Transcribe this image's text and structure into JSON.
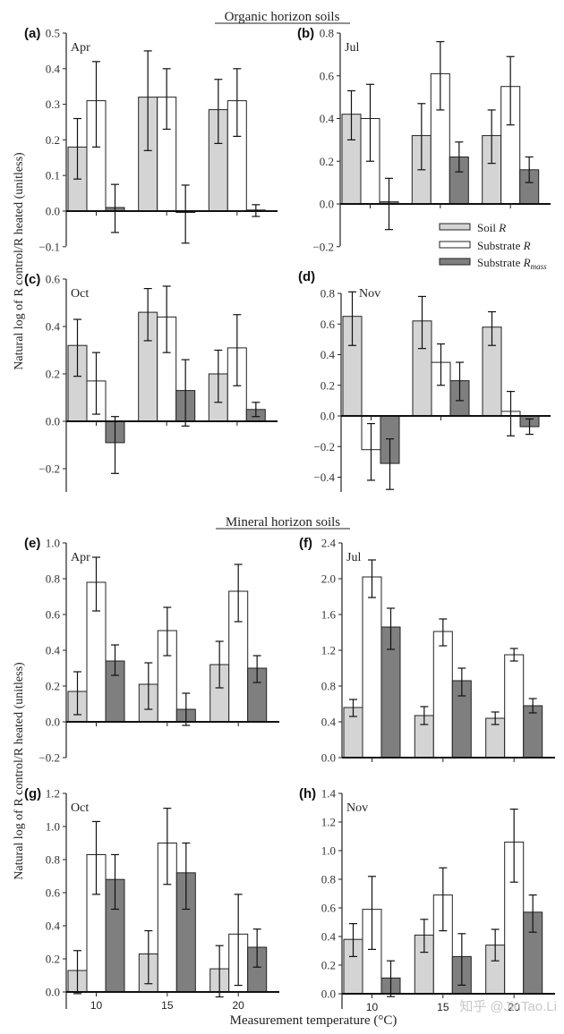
{
  "chart_data": {
    "type": "bar",
    "figure_ylabel": "Natural log of R control/R heated (unitless)",
    "figure_xlabel": "Measurement temperature (°C)",
    "categories": [
      "10",
      "15",
      "20"
    ],
    "legend": {
      "placement": "right, between panels (b) and (d)",
      "entries": [
        {
          "label": "Soil R",
          "color": "#d4d4d4"
        },
        {
          "label": "Substrate R",
          "color": "#ffffff"
        },
        {
          "label": "Substrate R_mass",
          "color": "#7f7f7f"
        }
      ]
    },
    "sections": [
      {
        "title": "Organic horizon soils",
        "panels": [
          {
            "id": "(a)",
            "month": "Apr",
            "ylim": [
              -0.1,
              0.5
            ],
            "yticks": [
              "−0.1",
              "0.0",
              "0.1",
              "0.2",
              "0.3",
              "0.4",
              "0.5"
            ],
            "ytick_values": [
              -0.1,
              0,
              0.1,
              0.2,
              0.3,
              0.4,
              0.5
            ],
            "series": [
              {
                "name": "Soil R",
                "values": [
                  0.18,
                  0.32,
                  0.285
                ],
                "err_low": [
                  0.09,
                  0.17,
                  0.19
                ],
                "err_high": [
                  0.26,
                  0.45,
                  0.37
                ]
              },
              {
                "name": "Substrate R",
                "values": [
                  0.31,
                  0.32,
                  0.31
                ],
                "err_low": [
                  0.18,
                  0.23,
                  0.21
                ],
                "err_high": [
                  0.42,
                  0.4,
                  0.4
                ]
              },
              {
                "name": "Substrate R_mass",
                "values": [
                  0.01,
                  -0.003,
                  0.003
                ],
                "err_low": [
                  -0.06,
                  -0.09,
                  -0.015
                ],
                "err_high": [
                  0.075,
                  0.073,
                  0.018
                ]
              }
            ]
          },
          {
            "id": "(b)",
            "month": "Jul",
            "ylim": [
              -0.2,
              0.8
            ],
            "yticks": [
              "−0.2",
              "0.0",
              "0.2",
              "0.4",
              "0.6",
              "0.8"
            ],
            "ytick_values": [
              -0.2,
              0,
              0.2,
              0.4,
              0.6,
              0.8
            ],
            "series": [
              {
                "name": "Soil R",
                "values": [
                  0.42,
                  0.32,
                  0.32
                ],
                "err_low": [
                  0.3,
                  0.16,
                  0.19
                ],
                "err_high": [
                  0.53,
                  0.47,
                  0.44
                ]
              },
              {
                "name": "Substrate R",
                "values": [
                  0.4,
                  0.61,
                  0.55
                ],
                "err_low": [
                  0.2,
                  0.44,
                  0.37
                ],
                "err_high": [
                  0.56,
                  0.76,
                  0.69
                ]
              },
              {
                "name": "Substrate R_mass",
                "values": [
                  0.01,
                  0.22,
                  0.16
                ],
                "err_low": [
                  -0.12,
                  0.15,
                  0.1
                ],
                "err_high": [
                  0.12,
                  0.29,
                  0.22
                ]
              }
            ]
          },
          {
            "id": "(c)",
            "month": "Oct",
            "ylim": [
              -0.3,
              0.6
            ],
            "yticks": [
              "−0.2",
              "0.0",
              "0.2",
              "0.4",
              "0.6"
            ],
            "ytick_values": [
              -0.2,
              0,
              0.2,
              0.4,
              0.6
            ],
            "series": [
              {
                "name": "Soil R",
                "values": [
                  0.32,
                  0.46,
                  0.2
                ],
                "err_low": [
                  0.19,
                  0.34,
                  0.08
                ],
                "err_high": [
                  0.43,
                  0.56,
                  0.3
                ]
              },
              {
                "name": "Substrate R",
                "values": [
                  0.17,
                  0.44,
                  0.31
                ],
                "err_low": [
                  0.03,
                  0.29,
                  0.15
                ],
                "err_high": [
                  0.29,
                  0.57,
                  0.45
                ]
              },
              {
                "name": "Substrate R_mass",
                "values": [
                  -0.09,
                  0.13,
                  0.05
                ],
                "err_low": [
                  -0.22,
                  -0.02,
                  0.02
                ],
                "err_high": [
                  0.02,
                  0.26,
                  0.08
                ]
              }
            ]
          },
          {
            "id": "(d)",
            "month": "Nov",
            "ylim": [
              -0.5,
              0.9
            ],
            "yticks": [
              "−0.4",
              "−0.2",
              "0.0",
              "0.2",
              "0.4",
              "0.6",
              "0.8"
            ],
            "ytick_values": [
              -0.4,
              -0.2,
              0,
              0.2,
              0.4,
              0.6,
              0.8
            ],
            "series": [
              {
                "name": "Soil R",
                "values": [
                  0.65,
                  0.62,
                  0.58
                ],
                "err_low": [
                  0.46,
                  0.44,
                  0.46
                ],
                "err_high": [
                  0.81,
                  0.78,
                  0.68
                ]
              },
              {
                "name": "Substrate R",
                "values": [
                  -0.22,
                  0.35,
                  0.03
                ],
                "err_low": [
                  -0.42,
                  0.2,
                  -0.13
                ],
                "err_high": [
                  -0.05,
                  0.47,
                  0.16
                ]
              },
              {
                "name": "Substrate R_mass",
                "values": [
                  -0.31,
                  0.23,
                  -0.07
                ],
                "err_low": [
                  -0.48,
                  0.1,
                  -0.12
                ],
                "err_high": [
                  -0.15,
                  0.35,
                  -0.02
                ]
              }
            ]
          }
        ]
      },
      {
        "title": "Mineral horizon soils",
        "panels": [
          {
            "id": "(e)",
            "month": "Apr",
            "ylim": [
              -0.2,
              1.0
            ],
            "yticks": [
              "−0.2",
              "0.0",
              "0.2",
              "0.4",
              "0.6",
              "0.8",
              "1.0"
            ],
            "ytick_values": [
              -0.2,
              0,
              0.2,
              0.4,
              0.6,
              0.8,
              1.0
            ],
            "series": [
              {
                "name": "Soil R",
                "values": [
                  0.17,
                  0.21,
                  0.32
                ],
                "err_low": [
                  0.04,
                  0.07,
                  0.19
                ],
                "err_high": [
                  0.28,
                  0.33,
                  0.45
                ]
              },
              {
                "name": "Substrate R",
                "values": [
                  0.78,
                  0.51,
                  0.73
                ],
                "err_low": [
                  0.62,
                  0.37,
                  0.56
                ],
                "err_high": [
                  0.92,
                  0.64,
                  0.88
                ]
              },
              {
                "name": "Substrate R_mass",
                "values": [
                  0.34,
                  0.07,
                  0.3
                ],
                "err_low": [
                  0.26,
                  -0.02,
                  0.22
                ],
                "err_high": [
                  0.43,
                  0.16,
                  0.37
                ]
              }
            ]
          },
          {
            "id": "(f)",
            "month": "Jul",
            "ylim": [
              0.0,
              2.4
            ],
            "yticks": [
              "0.0",
              "0.4",
              "0.8",
              "1.2",
              "1.6",
              "2.0",
              "2.4"
            ],
            "ytick_values": [
              0,
              0.4,
              0.8,
              1.2,
              1.6,
              2.0,
              2.4
            ],
            "series": [
              {
                "name": "Soil R",
                "values": [
                  0.56,
                  0.47,
                  0.44
                ],
                "err_low": [
                  0.46,
                  0.37,
                  0.37
                ],
                "err_high": [
                  0.65,
                  0.57,
                  0.51
                ]
              },
              {
                "name": "Substrate R",
                "values": [
                  2.02,
                  1.41,
                  1.15
                ],
                "err_low": [
                  1.79,
                  1.25,
                  1.08
                ],
                "err_high": [
                  2.21,
                  1.55,
                  1.22
                ]
              },
              {
                "name": "Substrate R_mass",
                "values": [
                  1.46,
                  0.86,
                  0.58
                ],
                "err_low": [
                  1.21,
                  0.69,
                  0.5
                ],
                "err_high": [
                  1.67,
                  1.0,
                  0.66
                ]
              }
            ]
          },
          {
            "id": "(g)",
            "month": "Oct",
            "ylim": [
              -0.1,
              1.2
            ],
            "yticks": [
              "0.0",
              "0.2",
              "0.4",
              "0.6",
              "0.8",
              "1.0",
              "1.2"
            ],
            "ytick_values": [
              0,
              0.2,
              0.4,
              0.6,
              0.8,
              1.0,
              1.2
            ],
            "xticks": [
              "10",
              "15",
              "20"
            ],
            "series": [
              {
                "name": "Soil R",
                "values": [
                  0.13,
                  0.23,
                  0.14
                ],
                "err_low": [
                  -0.01,
                  0.05,
                  -0.03
                ],
                "err_high": [
                  0.25,
                  0.37,
                  0.28
                ]
              },
              {
                "name": "Substrate R",
                "values": [
                  0.83,
                  0.9,
                  0.35
                ],
                "err_low": [
                  0.59,
                  0.65,
                  0.04
                ],
                "err_high": [
                  1.03,
                  1.11,
                  0.59
                ]
              },
              {
                "name": "Substrate R_mass",
                "values": [
                  0.68,
                  0.72,
                  0.27
                ],
                "err_low": [
                  0.5,
                  0.5,
                  0.15
                ],
                "err_high": [
                  0.83,
                  0.9,
                  0.38
                ]
              }
            ]
          },
          {
            "id": "(h)",
            "month": "Nov",
            "ylim": [
              -0.1,
              1.4
            ],
            "yticks": [
              "0.0",
              "0.2",
              "0.4",
              "0.6",
              "0.8",
              "1.0",
              "1.2",
              "1.4"
            ],
            "ytick_values": [
              0,
              0.2,
              0.4,
              0.6,
              0.8,
              1.0,
              1.2,
              1.4
            ],
            "xticks": [
              "10",
              "15",
              "20"
            ],
            "series": [
              {
                "name": "Soil R",
                "values": [
                  0.38,
                  0.41,
                  0.34
                ],
                "err_low": [
                  0.26,
                  0.29,
                  0.23
                ],
                "err_high": [
                  0.49,
                  0.52,
                  0.45
                ]
              },
              {
                "name": "Substrate R",
                "values": [
                  0.59,
                  0.69,
                  1.06
                ],
                "err_low": [
                  0.31,
                  0.44,
                  0.78
                ],
                "err_high": [
                  0.82,
                  0.88,
                  1.29
                ]
              },
              {
                "name": "Substrate R_mass",
                "values": [
                  0.11,
                  0.26,
                  0.57
                ],
                "err_low": [
                  -0.02,
                  0.06,
                  0.43
                ],
                "err_high": [
                  0.23,
                  0.42,
                  0.69
                ]
              }
            ]
          }
        ]
      }
    ]
  },
  "watermark": "知乎 @JinTao.Li"
}
